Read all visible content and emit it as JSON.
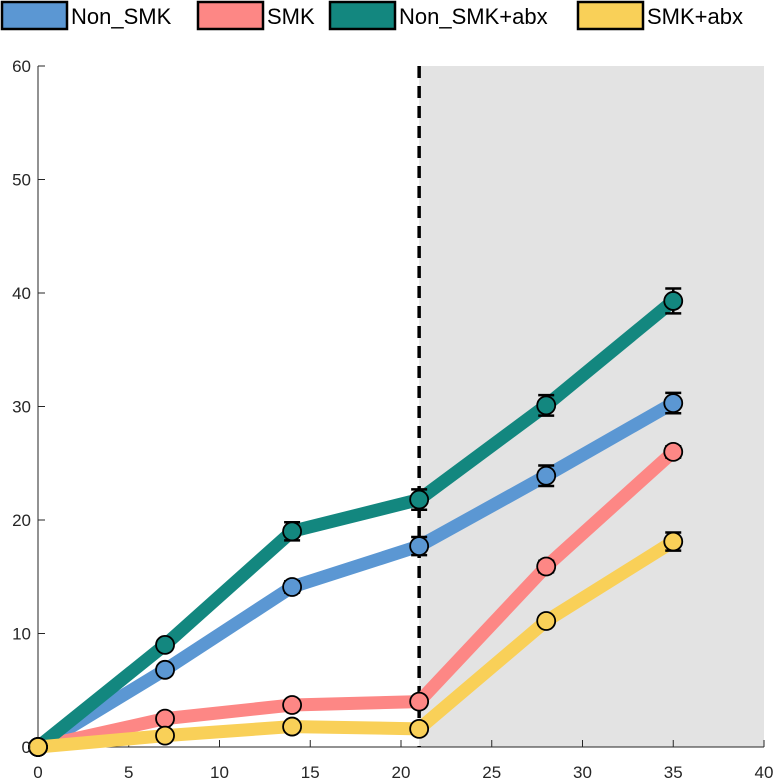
{
  "chart_data": {
    "type": "line",
    "title": "",
    "xlabel": "",
    "ylabel": "",
    "xlim": [
      0,
      40
    ],
    "ylim": [
      0,
      60
    ],
    "xticks": [
      0,
      5,
      10,
      15,
      20,
      25,
      30,
      35,
      40
    ],
    "yticks": [
      0,
      10,
      20,
      30,
      40,
      50,
      60
    ],
    "grid": false,
    "legend_position": "top",
    "shaded_region": {
      "x_start": 21,
      "x_end": 40,
      "color": "#e3e3e3"
    },
    "vertical_line": {
      "x": 21,
      "style": "dashed",
      "color": "#000000"
    },
    "x": [
      0,
      7,
      14,
      21,
      28,
      35
    ],
    "series": [
      {
        "name": "Non_SMK",
        "color": "#5b97d3",
        "values": [
          0,
          6.8,
          14.1,
          17.7,
          23.9,
          30.3
        ],
        "error": [
          0,
          0.4,
          0.5,
          0.8,
          0.9,
          0.9
        ]
      },
      {
        "name": "SMK",
        "color": "#fd8785",
        "values": [
          0,
          2.5,
          3.7,
          4.0,
          15.9,
          26.0
        ],
        "error": [
          0,
          0.3,
          0.3,
          0.4,
          0.5,
          0.5
        ]
      },
      {
        "name": "Non_SMK+abx",
        "color": "#13877f",
        "values": [
          0,
          9.0,
          19.0,
          21.8,
          30.1,
          39.3
        ],
        "error": [
          0,
          0.4,
          0.8,
          0.9,
          0.9,
          1.1
        ]
      },
      {
        "name": "SMK+abx",
        "color": "#f9d058",
        "values": [
          0,
          1.0,
          1.8,
          1.6,
          11.1,
          18.1
        ],
        "error": [
          0,
          0.3,
          0.3,
          0.3,
          0.4,
          0.8
        ]
      }
    ]
  }
}
